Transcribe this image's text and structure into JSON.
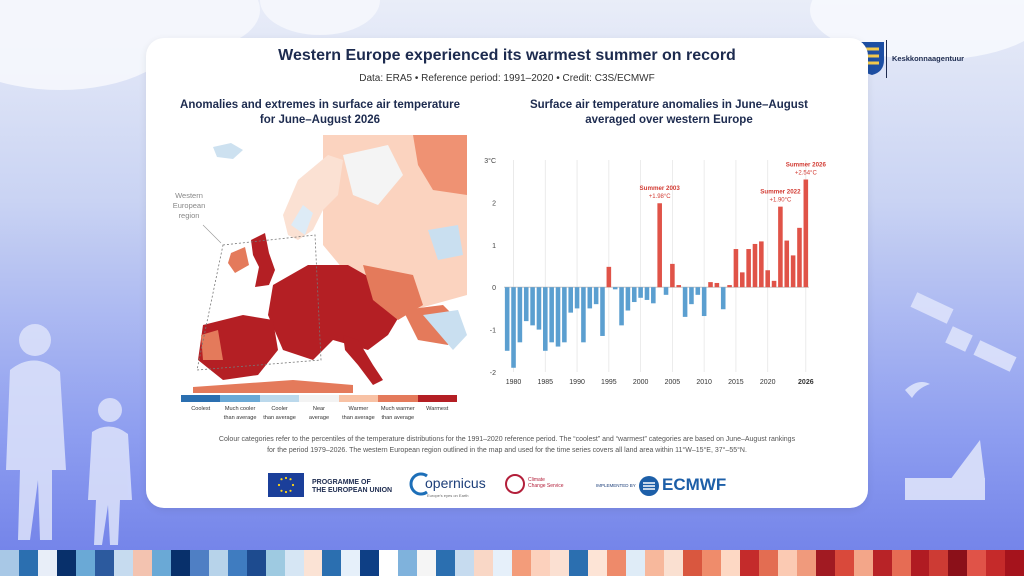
{
  "header": {
    "title": "Western Europe experienced its warmest summer on record",
    "subtitle": "Data: ERA5 • Reference period: 1991–2020 • Credit: C3S/ECMWF"
  },
  "map_panel": {
    "title_line1": "Anomalies and extremes in surface air temperature",
    "title_line2": "for June–August 2026",
    "region_label_line1": "Western",
    "region_label_line2": "European",
    "region_label_line3": "region",
    "legend": [
      {
        "label1": "Coolest",
        "label2": "",
        "color": "#2b6fb0"
      },
      {
        "label1": "Much cooler",
        "label2": "than average",
        "color": "#6aa9d6"
      },
      {
        "label1": "Cooler",
        "label2": "than average",
        "color": "#bcd9ec"
      },
      {
        "label1": "Near",
        "label2": "average",
        "color": "#f3f3f3"
      },
      {
        "label1": "Warmer",
        "label2": "than average",
        "color": "#f8c2a5"
      },
      {
        "label1": "Much warmer",
        "label2": "than average",
        "color": "#e47a5b"
      },
      {
        "label1": "Warmest",
        "label2": "",
        "color": "#b41f24"
      }
    ]
  },
  "chart_panel": {
    "title_line1": "Surface air temperature anomalies in June–August",
    "title_line2": "averaged over western Europe"
  },
  "chart_data": {
    "type": "bar",
    "x": [
      1979,
      1980,
      1981,
      1982,
      1983,
      1984,
      1985,
      1986,
      1987,
      1988,
      1989,
      1990,
      1991,
      1992,
      1993,
      1994,
      1995,
      1996,
      1997,
      1998,
      1999,
      2000,
      2001,
      2002,
      2003,
      2004,
      2005,
      2006,
      2007,
      2008,
      2009,
      2010,
      2011,
      2012,
      2013,
      2014,
      2015,
      2016,
      2017,
      2018,
      2019,
      2020,
      2021,
      2022,
      2023,
      2024,
      2025,
      2026
    ],
    "values": [
      -1.5,
      -1.9,
      -1.3,
      -0.8,
      -0.9,
      -1.0,
      -1.5,
      -1.3,
      -1.4,
      -1.3,
      -0.6,
      -0.5,
      -1.3,
      -0.5,
      -0.4,
      -1.15,
      0.48,
      -0.05,
      -0.9,
      -0.55,
      -0.35,
      -0.25,
      -0.3,
      -0.38,
      1.98,
      -0.18,
      0.55,
      0.05,
      -0.7,
      -0.4,
      -0.18,
      -0.68,
      0.12,
      0.1,
      -0.52,
      0.05,
      0.9,
      0.35,
      0.9,
      1.02,
      1.08,
      0.4,
      0.15,
      1.9,
      1.1,
      0.75,
      1.4,
      2.54
    ],
    "colors": {
      "positive": "#e05348",
      "negative": "#5b9fd0"
    },
    "ylim": [
      -2,
      3
    ],
    "y_unit_label": "3°C",
    "yticks": [
      "2",
      "1",
      "0",
      "-1",
      "-2"
    ],
    "xticks": [
      "1980",
      "1985",
      "1990",
      "1995",
      "2000",
      "2005",
      "2010",
      "2015",
      "2020",
      "2026"
    ],
    "annotations": [
      {
        "year": 2003,
        "label": "Summer 2003",
        "value_label": "+1.98°C"
      },
      {
        "year": 2022,
        "label": "Summer 2022",
        "value_label": "+1.90°C"
      },
      {
        "year": 2026,
        "label": "Summer 2026",
        "value_label": "+2.54°C"
      }
    ],
    "grid": "vertical",
    "title": "Surface air temperature anomalies in June–August averaged over western Europe"
  },
  "footnote": {
    "line1": "Colour categories refer to the percentiles of the temperature distributions for the 1991–2020 reference period. The “coolest” and “warmest” categories are based on June–August rankings",
    "line2": "for the period 1979–2026. The western European region outlined in the map and used for the time series covers all land area within 11°W–15°E, 37°–55°N."
  },
  "logos": {
    "eu_line1": "PROGRAMME OF",
    "eu_line2": "THE EUROPEAN UNION",
    "copernicus": "opernicus",
    "copernicus_tag": "Europe's eyes on Earth",
    "c3s_line1": "Climate",
    "c3s_line2": "Change Service",
    "implemented": "IMPLEMENTED BY",
    "ecmwf": "ECMWF"
  },
  "agency": {
    "name": "Keskkonnaagentuur"
  },
  "stripe_colors": [
    "#a8c8e6",
    "#2b6fb0",
    "#e8eef8",
    "#08306b",
    "#6aa9d6",
    "#2c5a9e",
    "#c6dbef",
    "#f3c3b0",
    "#6aa9d6",
    "#08306b",
    "#4f7fc4",
    "#b7d3ea",
    "#3f7cc0",
    "#1d4b8f",
    "#9ecae1",
    "#d6e6f4",
    "#fbe3d5",
    "#2b6fb0",
    "#e6f0fa",
    "#0e3f85",
    "#ffffff",
    "#7fb2dc",
    "#f5f5f5",
    "#2b6fb0",
    "#c6dbef",
    "#f9d7c6",
    "#e6f0fa",
    "#f39c7a",
    "#fcd1bd",
    "#fbe0d2",
    "#2b6fb0",
    "#fde4d6",
    "#ee8a6a",
    "#dfecf7",
    "#f7b89c",
    "#fae0d1",
    "#d9573f",
    "#ef8c6b",
    "#fdd8c4",
    "#c42b2b",
    "#e36d52",
    "#fbcab3",
    "#f09a7c",
    "#a11a22",
    "#d9493b",
    "#f3a689",
    "#b82327",
    "#e66c54",
    "#b01b22",
    "#cd3b34",
    "#8b1019",
    "#e05348",
    "#c52a2a",
    "#a5131c"
  ]
}
